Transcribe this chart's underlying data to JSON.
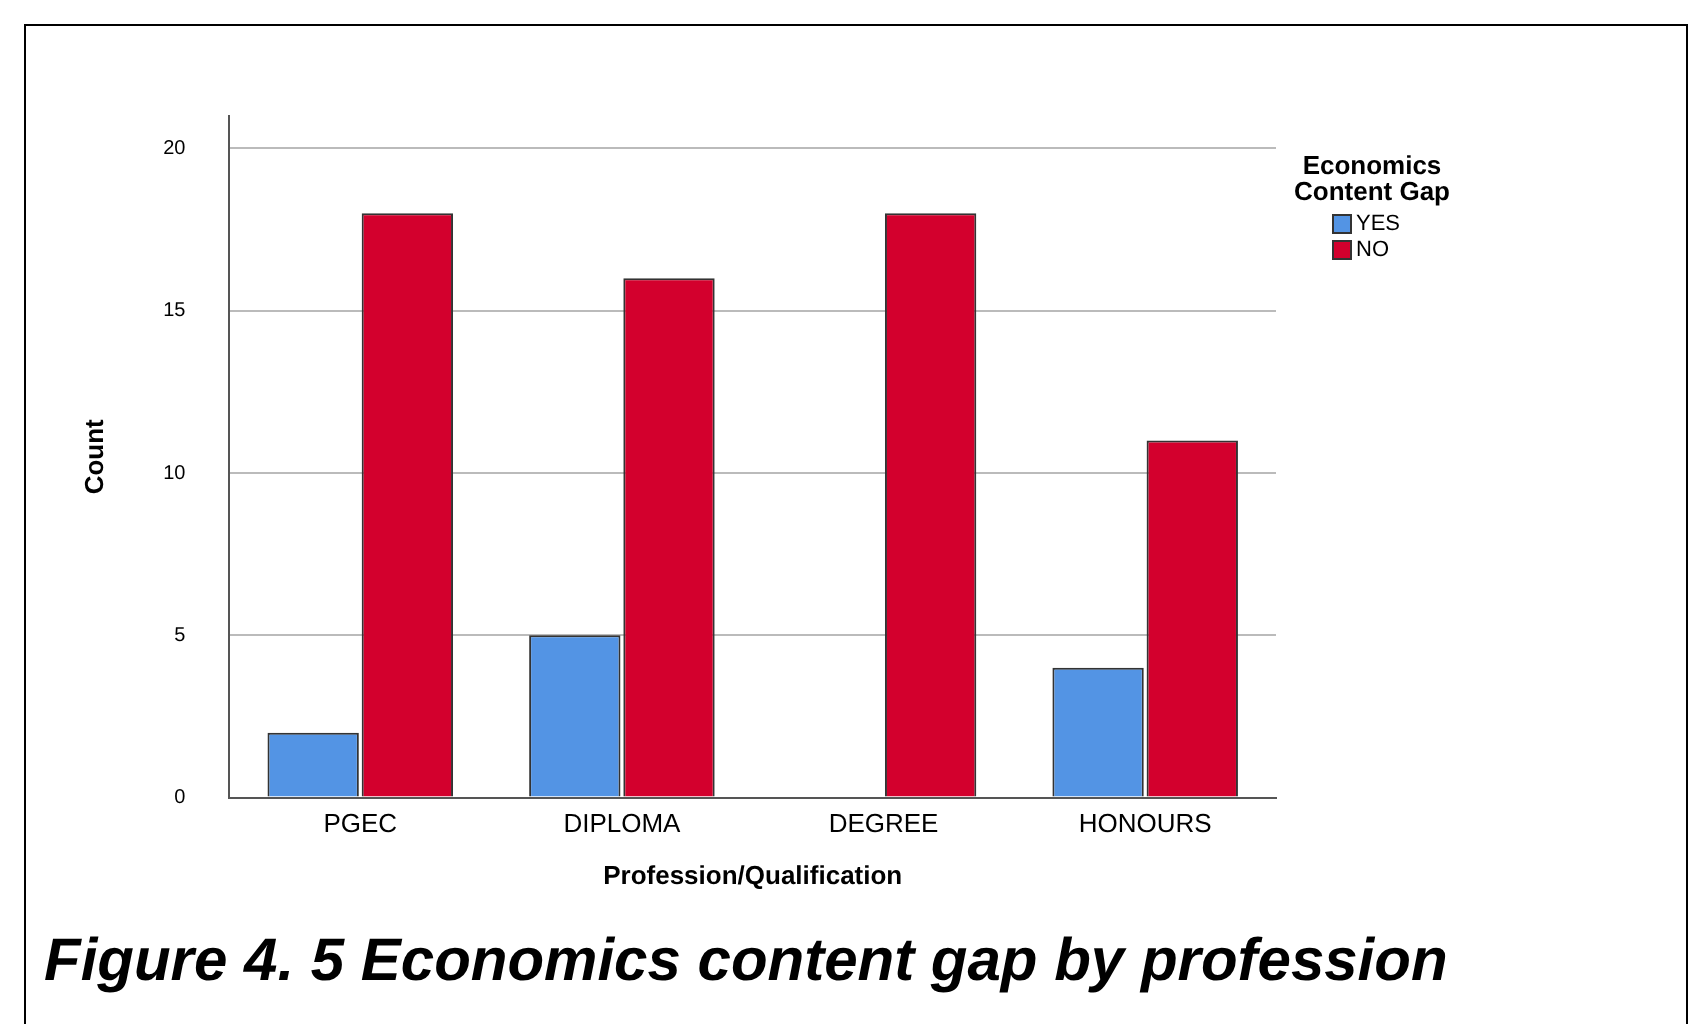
{
  "chart_data": {
    "type": "bar",
    "title": "Figure 4. 5 Economics content gap by profession",
    "xlabel": "Profession/Qualification",
    "ylabel": "Count",
    "legend_title": "Economics Content Gap",
    "categories": [
      "PGEC",
      "DIPLOMA",
      "DEGREE",
      "HONOURS"
    ],
    "series": [
      {
        "name": "YES",
        "color": "#5394e4",
        "values": [
          2,
          5,
          0,
          4
        ]
      },
      {
        "name": "NO",
        "color": "#d3002d",
        "values": [
          18,
          16,
          18,
          11
        ]
      }
    ],
    "ylim": [
      0,
      21
    ],
    "yticks": [
      0,
      5,
      10,
      15,
      20
    ],
    "grid": "y",
    "legend": "top right"
  }
}
